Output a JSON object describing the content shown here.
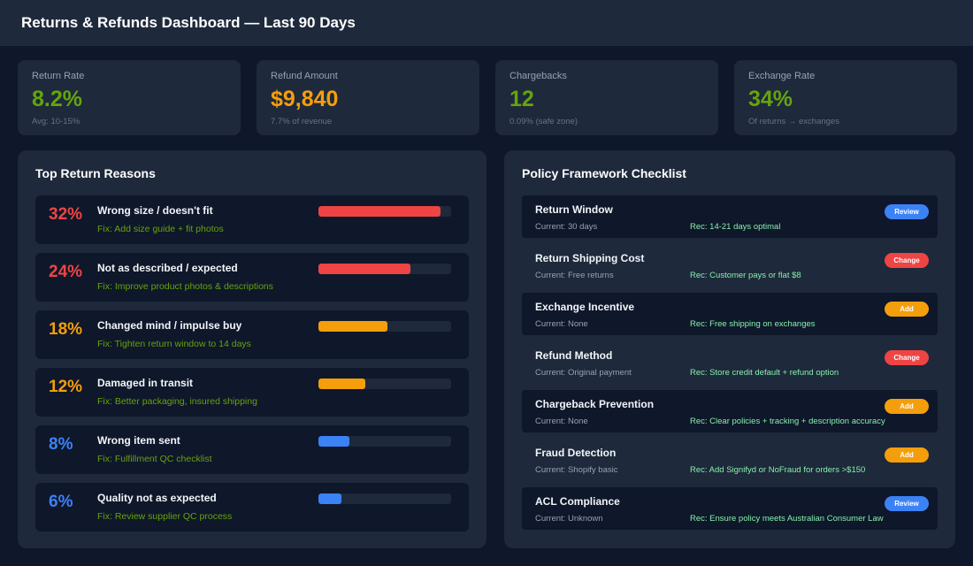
{
  "header": {
    "title": "Returns & Refunds Dashboard — Last 90 Days"
  },
  "kpis": [
    {
      "label": "Return Rate",
      "value": "8.2%",
      "sub": "Avg: 10-15%",
      "color": "#65a30d"
    },
    {
      "label": "Refund Amount",
      "value": "$9,840",
      "sub": "7.7% of revenue",
      "color": "#f59e0b"
    },
    {
      "label": "Chargebacks",
      "value": "12",
      "sub": "0.09% (safe zone)",
      "color": "#65a30d"
    },
    {
      "label": "Exchange Rate",
      "value": "34%",
      "sub": "Of returns → exchanges",
      "color": "#65a30d"
    }
  ],
  "reasons": {
    "title": "Top Return Reasons",
    "items": [
      {
        "pct": "32%",
        "title": "Wrong size / doesn't fit",
        "fix": "Fix: Add size guide + fit photos",
        "fill": 0.92,
        "color": "#ef4444"
      },
      {
        "pct": "24%",
        "title": "Not as described / expected",
        "fix": "Fix: Improve product photos & descriptions",
        "fill": 0.69,
        "color": "#ef4444"
      },
      {
        "pct": "18%",
        "title": "Changed mind / impulse buy",
        "fix": "Fix: Tighten return window to 14 days",
        "fill": 0.52,
        "color": "#f59e0b"
      },
      {
        "pct": "12%",
        "title": "Damaged in transit",
        "fix": "Fix: Better packaging, insured shipping",
        "fill": 0.35,
        "color": "#f59e0b"
      },
      {
        "pct": "8%",
        "title": "Wrong item sent",
        "fix": "Fix: Fulfillment QC checklist",
        "fill": 0.23,
        "color": "#3b82f6"
      },
      {
        "pct": "6%",
        "title": "Quality not as expected",
        "fix": "Fix: Review supplier QC process",
        "fill": 0.17,
        "color": "#3b82f6"
      }
    ]
  },
  "policy": {
    "title": "Policy Framework Checklist",
    "items": [
      {
        "title": "Return Window",
        "current": "Current: 30 days",
        "rec": "Rec: 14-21 days optimal",
        "badge": "Review",
        "badge_color": "#3b82f6"
      },
      {
        "title": "Return Shipping Cost",
        "current": "Current: Free returns",
        "rec": "Rec: Customer pays or flat $8",
        "badge": "Change",
        "badge_color": "#ef4444"
      },
      {
        "title": "Exchange Incentive",
        "current": "Current: None",
        "rec": "Rec: Free shipping on exchanges",
        "badge": "Add",
        "badge_color": "#f59e0b"
      },
      {
        "title": "Refund Method",
        "current": "Current: Original payment",
        "rec": "Rec: Store credit default + refund option",
        "badge": "Change",
        "badge_color": "#ef4444"
      },
      {
        "title": "Chargeback Prevention",
        "current": "Current: None",
        "rec": "Rec: Clear policies + tracking + description accuracy",
        "badge": "Add",
        "badge_color": "#f59e0b"
      },
      {
        "title": "Fraud Detection",
        "current": "Current: Shopify basic",
        "rec": "Rec: Add Signifyd or NoFraud for orders >$150",
        "badge": "Add",
        "badge_color": "#f59e0b"
      },
      {
        "title": "ACL Compliance",
        "current": "Current: Unknown",
        "rec": "Rec: Ensure policy meets Australian Consumer Law",
        "badge": "Review",
        "badge_color": "#3b82f6"
      }
    ]
  }
}
